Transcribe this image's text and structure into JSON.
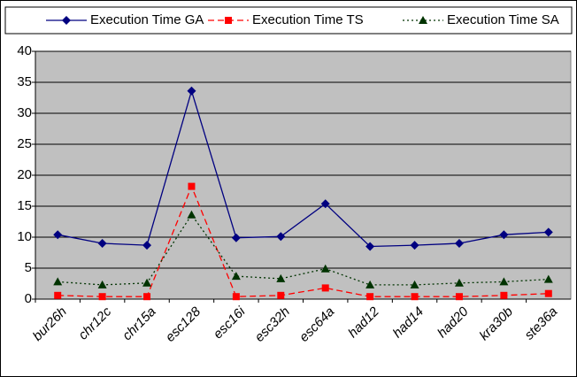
{
  "chart_data": {
    "type": "line",
    "categories": [
      "bur26h",
      "chr12c",
      "chr15a",
      "esc128",
      "esc16i",
      "esc32h",
      "esc64a",
      "had12",
      "had14",
      "had20",
      "kra30b",
      "ste36a"
    ],
    "series": [
      {
        "name": "Execution Time GA",
        "color": "#000080",
        "marker": "diamond",
        "dash": "solid",
        "values": [
          10.4,
          9,
          8.7,
          33.6,
          9.9,
          10.1,
          15.4,
          8.5,
          8.7,
          9,
          10.4,
          10.8
        ]
      },
      {
        "name": "Execution Time TS",
        "color": "#ff0000",
        "marker": "square",
        "dash": "dashed",
        "values": [
          0.6,
          0.4,
          0.4,
          18.2,
          0.4,
          0.6,
          1.8,
          0.4,
          0.4,
          0.4,
          0.6,
          0.9
        ]
      },
      {
        "name": "Execution Time SA",
        "color": "#003300",
        "marker": "triangle",
        "dash": "dotted",
        "values": [
          2.8,
          2.3,
          2.6,
          13.6,
          3.7,
          3.3,
          4.9,
          2.3,
          2.3,
          2.6,
          2.8,
          3.2
        ]
      }
    ],
    "ylim": [
      0,
      40
    ],
    "yticks": [
      0,
      5,
      10,
      15,
      20,
      25,
      30,
      35,
      40
    ],
    "grid": true,
    "legend": "top"
  }
}
